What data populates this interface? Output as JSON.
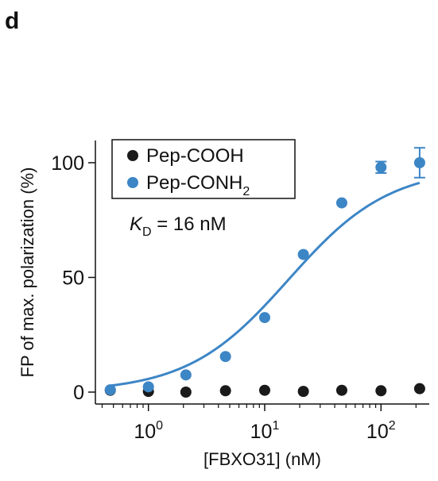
{
  "panel_label": "d",
  "chart_data": {
    "type": "scatter",
    "xlabel": "[FBXO31] (nM)",
    "ylabel": "FP of max. polarization (%)",
    "x_scale": "log",
    "xlim": [
      0.35,
      260
    ],
    "ylim": [
      -5,
      110
    ],
    "x_ticks": [
      {
        "value": 1,
        "base": "10",
        "exp": "0"
      },
      {
        "value": 10,
        "base": "10",
        "exp": "1"
      },
      {
        "value": 100,
        "base": "10",
        "exp": "2"
      }
    ],
    "y_ticks": [
      0,
      50,
      100
    ],
    "legend": {
      "placement": "top-left",
      "entries": [
        {
          "label": "Pep-COOH",
          "sub": ""
        },
        {
          "label": "Pep-CONH",
          "sub": "2"
        }
      ]
    },
    "annotation": {
      "k": "K",
      "sub": "D",
      "text": " = 16 nM"
    },
    "series": [
      {
        "name": "Pep-COOH",
        "color": "#1a1a1a",
        "x": [
          0.47,
          1.0,
          2.1,
          4.6,
          10,
          21.5,
          46,
          100,
          215
        ],
        "y": [
          0.8,
          0.3,
          0.0,
          0.6,
          0.8,
          0.3,
          0.8,
          0.6,
          1.5
        ]
      },
      {
        "name": "Pep-CONH2",
        "color": "#3d86c6",
        "x": [
          0.47,
          1.0,
          2.1,
          4.6,
          10,
          21.5,
          46,
          100,
          215
        ],
        "y": [
          1.0,
          2.3,
          7.5,
          15.5,
          32.5,
          60.0,
          82.5,
          98.0,
          100.0
        ],
        "err": [
          0,
          0,
          0,
          0,
          0,
          0,
          0,
          2.5,
          6.5
        ]
      }
    ],
    "fit": {
      "series": "Pep-CONH2",
      "model": "hill",
      "kd": 16,
      "top": 98,
      "bottom": 0,
      "color": "#3d86c6"
    }
  }
}
